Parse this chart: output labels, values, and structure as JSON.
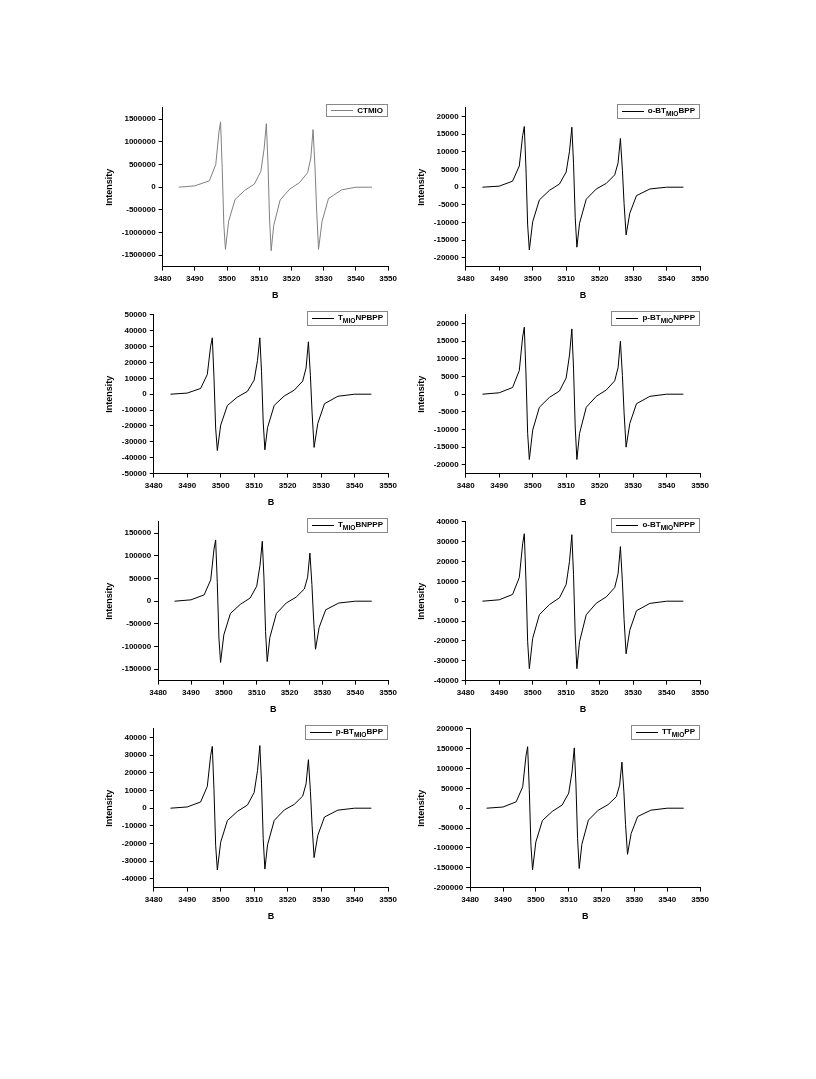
{
  "chart_data": [
    {
      "type": "line",
      "xlabel": "B",
      "ylabel": "Intensity",
      "xlim": [
        3480,
        3550
      ],
      "xticks": [
        3480,
        3490,
        3500,
        3510,
        3520,
        3530,
        3540,
        3550
      ],
      "ylim": [
        -1750000,
        1750000
      ],
      "yticks": [
        -1500000,
        -1000000,
        -500000,
        0,
        500000,
        1000000,
        1500000
      ],
      "grid": false,
      "legend": "top right",
      "marker": "none",
      "line_style": "solid",
      "x": [
        3485,
        3490,
        3494.5,
        3496.5,
        3497.5,
        3498,
        3498.5,
        3499,
        3499.5,
        3500.5,
        3502.5,
        3505.5,
        3508.5,
        3510.5,
        3511.5,
        3512.2,
        3512.7,
        3513.2,
        3513.7,
        3514.5,
        3516.5,
        3519.5,
        3522.5,
        3525,
        3526,
        3526.7,
        3527.3,
        3527.8,
        3528.4,
        3529.5,
        3531.5,
        3535.5,
        3540,
        3545
      ],
      "series": [
        {
          "name": "CTMIO",
          "color": "#808080",
          "values": [
            0,
            30000,
            140000,
            500000,
            1220000,
            1440000,
            430000,
            -820000,
            -1370000,
            -750000,
            -270000,
            -70000,
            70000,
            350000,
            840000,
            1400000,
            560000,
            -700000,
            -1400000,
            -840000,
            -280000,
            -40000,
            100000,
            320000,
            640000,
            1270000,
            450000,
            -480000,
            -1370000,
            -750000,
            -250000,
            -60000,
            0,
            0
          ]
        }
      ]
    },
    {
      "type": "line",
      "xlabel": "B",
      "ylabel": "Intensity",
      "xlim": [
        3480,
        3550
      ],
      "xticks": [
        3480,
        3490,
        3500,
        3510,
        3520,
        3530,
        3540,
        3550
      ],
      "ylim": [
        -22500,
        22500
      ],
      "yticks": [
        -20000,
        -15000,
        -10000,
        -5000,
        0,
        5000,
        10000,
        15000,
        20000
      ],
      "grid": false,
      "legend": "top right",
      "marker": "none",
      "line_style": "solid",
      "x": [
        3485,
        3490,
        3494,
        3496,
        3497,
        3497.5,
        3498,
        3498.5,
        3499,
        3500,
        3502,
        3505,
        3508,
        3510,
        3511,
        3511.7,
        3512.2,
        3512.7,
        3513.2,
        3514,
        3516,
        3519,
        3522,
        3524.5,
        3525.5,
        3526.2,
        3526.8,
        3527.3,
        3527.9,
        3529,
        3531,
        3535,
        3540,
        3545
      ],
      "series": [
        {
          "name": "o-BT$_{MIO}$BPP",
          "color": "#000000",
          "values": [
            0,
            300,
            1700,
            6000,
            14600,
            17200,
            5200,
            -10700,
            -17800,
            -9800,
            -3600,
            -900,
            900,
            4300,
            10200,
            17000,
            6800,
            -8500,
            -17000,
            -10200,
            -3400,
            -500,
            1100,
            3500,
            6900,
            13800,
            4800,
            -4700,
            -13500,
            -7400,
            -2400,
            -500,
            0,
            0
          ]
        }
      ]
    },
    {
      "type": "line",
      "xlabel": "B",
      "ylabel": "Intensity",
      "xlim": [
        3480,
        3550
      ],
      "xticks": [
        3480,
        3490,
        3500,
        3510,
        3520,
        3530,
        3540,
        3550
      ],
      "ylim": [
        -50000,
        50000
      ],
      "yticks": [
        -50000,
        -40000,
        -30000,
        -20000,
        -10000,
        0,
        10000,
        20000,
        30000,
        40000,
        50000
      ],
      "grid": false,
      "legend": "top right",
      "marker": "none",
      "line_style": "solid",
      "x": [
        3485,
        3490,
        3494,
        3496,
        3497,
        3497.5,
        3498,
        3498.5,
        3499,
        3500,
        3502,
        3505,
        3508,
        3510,
        3511,
        3511.7,
        3512.2,
        3512.7,
        3513.2,
        3514,
        3516,
        3519,
        3522,
        3524.5,
        3525.5,
        3526.2,
        3526.8,
        3527.3,
        3527.9,
        3529,
        3531,
        3535,
        3540,
        3545
      ],
      "series": [
        {
          "name": "T$_{MIO}$NPBPP",
          "color": "#000000",
          "values": [
            0,
            700,
            3600,
            12400,
            30200,
            35500,
            10700,
            -21300,
            -35500,
            -19500,
            -7100,
            -1800,
            1800,
            8900,
            21300,
            35500,
            14200,
            -17500,
            -35000,
            -21000,
            -7000,
            -1100,
            2600,
            8300,
            16500,
            33000,
            11600,
            -11700,
            -33500,
            -18400,
            -6000,
            -1300,
            0,
            0
          ]
        }
      ]
    },
    {
      "type": "line",
      "xlabel": "B",
      "ylabel": "Intensity",
      "xlim": [
        3480,
        3550
      ],
      "xticks": [
        3480,
        3490,
        3500,
        3510,
        3520,
        3530,
        3540,
        3550
      ],
      "ylim": [
        -22500,
        22500
      ],
      "yticks": [
        -20000,
        -15000,
        -10000,
        -5000,
        0,
        5000,
        10000,
        15000,
        20000
      ],
      "grid": false,
      "legend": "top right",
      "marker": "none",
      "line_style": "solid",
      "x": [
        3485,
        3490,
        3494,
        3496,
        3497,
        3497.5,
        3498,
        3498.5,
        3499,
        3500,
        3502,
        3505,
        3508,
        3510,
        3511,
        3511.7,
        3512.2,
        3512.7,
        3513.2,
        3514,
        3516,
        3519,
        3522,
        3524.5,
        3525.5,
        3526.2,
        3526.8,
        3527.3,
        3527.9,
        3529,
        3531,
        3535,
        3540,
        3545
      ],
      "series": [
        {
          "name": "p-BT$_{MIO}$NPPP",
          "color": "#000000",
          "values": [
            0,
            400,
            1900,
            6700,
            16200,
            19000,
            5700,
            -11100,
            -18500,
            -10200,
            -3700,
            -900,
            900,
            4600,
            11100,
            18500,
            7400,
            -9300,
            -18500,
            -11100,
            -3700,
            -600,
            1200,
            3800,
            7500,
            15000,
            5300,
            -5300,
            -15000,
            -8300,
            -2700,
            -600,
            0,
            0
          ]
        }
      ]
    },
    {
      "type": "line",
      "xlabel": "B",
      "ylabel": "Intensity",
      "xlim": [
        3480,
        3550
      ],
      "xticks": [
        3480,
        3490,
        3500,
        3510,
        3520,
        3530,
        3540,
        3550
      ],
      "ylim": [
        -175000,
        175000
      ],
      "yticks": [
        -150000,
        -100000,
        -50000,
        0,
        50000,
        100000,
        150000
      ],
      "grid": false,
      "legend": "top right",
      "marker": "none",
      "line_style": "solid",
      "x": [
        3485,
        3490,
        3494,
        3496,
        3497,
        3497.5,
        3498,
        3498.5,
        3499,
        3500,
        3502,
        3505,
        3508,
        3510,
        3511,
        3511.7,
        3512.2,
        3512.7,
        3513.2,
        3514,
        3516,
        3519,
        3522,
        3524.5,
        3525.5,
        3526.2,
        3526.8,
        3527.3,
        3527.9,
        3529,
        3531,
        3535,
        3540,
        3545
      ],
      "series": [
        {
          "name": "T$_{MIO}$BNPPP",
          "color": "#000000",
          "values": [
            0,
            3000,
            14000,
            47000,
            115000,
            135000,
            41000,
            -81000,
            -135000,
            -74000,
            -27000,
            -7000,
            7000,
            33000,
            79000,
            132000,
            53000,
            -67000,
            -133000,
            -80000,
            -27000,
            -4000,
            9000,
            27000,
            53000,
            106000,
            37000,
            -37000,
            -106000,
            -58000,
            -19000,
            -4000,
            0,
            0
          ]
        }
      ]
    },
    {
      "type": "line",
      "xlabel": "B",
      "ylabel": "Intensity",
      "xlim": [
        3480,
        3550
      ],
      "xticks": [
        3480,
        3490,
        3500,
        3510,
        3520,
        3530,
        3540,
        3550
      ],
      "ylim": [
        -40000,
        40000
      ],
      "yticks": [
        -40000,
        -30000,
        -20000,
        -10000,
        0,
        10000,
        20000,
        30000,
        40000
      ],
      "grid": false,
      "legend": "top right",
      "marker": "none",
      "line_style": "solid",
      "x": [
        3485,
        3490,
        3494,
        3496,
        3497,
        3497.5,
        3498,
        3498.5,
        3499,
        3500,
        3502,
        3505,
        3508,
        3510,
        3511,
        3511.7,
        3512.2,
        3512.7,
        3513.2,
        3514,
        3516,
        3519,
        3522,
        3524.5,
        3525.5,
        3526.2,
        3526.8,
        3527.3,
        3527.9,
        3529,
        3531,
        3535,
        3540,
        3545
      ],
      "series": [
        {
          "name": "o-BT$_{MIO}$NPPP",
          "color": "#000000",
          "values": [
            0,
            700,
            3400,
            11900,
            28900,
            34000,
            10200,
            -20400,
            -34000,
            -18700,
            -6800,
            -1700,
            1700,
            8400,
            20100,
            33500,
            13400,
            -17000,
            -34000,
            -20400,
            -6800,
            -1000,
            2200,
            6900,
            13800,
            27500,
            9600,
            -9300,
            -26500,
            -14600,
            -4800,
            -1100,
            0,
            0
          ]
        }
      ]
    },
    {
      "type": "line",
      "xlabel": "B",
      "ylabel": "Intensity",
      "xlim": [
        3480,
        3550
      ],
      "xticks": [
        3480,
        3490,
        3500,
        3510,
        3520,
        3530,
        3540,
        3550
      ],
      "ylim": [
        -45000,
        45000
      ],
      "yticks": [
        -40000,
        -30000,
        -20000,
        -10000,
        0,
        10000,
        20000,
        30000,
        40000
      ],
      "grid": false,
      "legend": "top right",
      "marker": "none",
      "line_style": "solid",
      "x": [
        3485,
        3490,
        3494,
        3496,
        3497,
        3497.5,
        3498,
        3498.5,
        3499,
        3500,
        3502,
        3505,
        3508,
        3510,
        3511,
        3511.7,
        3512.2,
        3512.7,
        3513.2,
        3514,
        3516,
        3519,
        3522,
        3524.5,
        3525.5,
        3526.2,
        3526.8,
        3527.3,
        3527.9,
        3529,
        3531,
        3535,
        3540,
        3545
      ],
      "series": [
        {
          "name": "p-BT$_{MIO}$BPP",
          "color": "#000000",
          "values": [
            0,
            700,
            3500,
            12300,
            29800,
            35000,
            10500,
            -21000,
            -35000,
            -19300,
            -7000,
            -1800,
            1800,
            8900,
            21300,
            35500,
            14200,
            -17300,
            -34500,
            -20700,
            -6900,
            -1000,
            2200,
            6900,
            13800,
            27500,
            9600,
            -9800,
            -28000,
            -15400,
            -5000,
            -1100,
            0,
            0
          ]
        }
      ]
    },
    {
      "type": "line",
      "xlabel": "B",
      "ylabel": "Intensity",
      "xlim": [
        3480,
        3550
      ],
      "xticks": [
        3480,
        3490,
        3500,
        3510,
        3520,
        3530,
        3540,
        3550
      ],
      "ylim": [
        -200000,
        200000
      ],
      "yticks": [
        -200000,
        -150000,
        -100000,
        -50000,
        0,
        50000,
        100000,
        150000,
        200000
      ],
      "grid": false,
      "legend": "top right",
      "marker": "none",
      "line_style": "solid",
      "x": [
        3485,
        3490,
        3494,
        3496,
        3497,
        3497.5,
        3498,
        3498.5,
        3499,
        3500,
        3502,
        3505,
        3508,
        3510,
        3511,
        3511.7,
        3512.2,
        3512.7,
        3513.2,
        3514,
        3516,
        3519,
        3522,
        3524.5,
        3525.5,
        3526.2,
        3526.8,
        3527.3,
        3527.9,
        3529,
        3531,
        3535,
        3540,
        3545
      ],
      "series": [
        {
          "name": "TT$_{MIO}$PP",
          "color": "#000000",
          "values": [
            0,
            3000,
            16000,
            54000,
            132000,
            155000,
            47000,
            -93000,
            -155000,
            -85000,
            -31000,
            -8000,
            8000,
            38000,
            91000,
            152000,
            61000,
            -76000,
            -152000,
            -91000,
            -30000,
            -5000,
            9000,
            29000,
            58000,
            116000,
            41000,
            -41000,
            -116000,
            -64000,
            -21000,
            -5000,
            0,
            0
          ]
        }
      ]
    }
  ]
}
